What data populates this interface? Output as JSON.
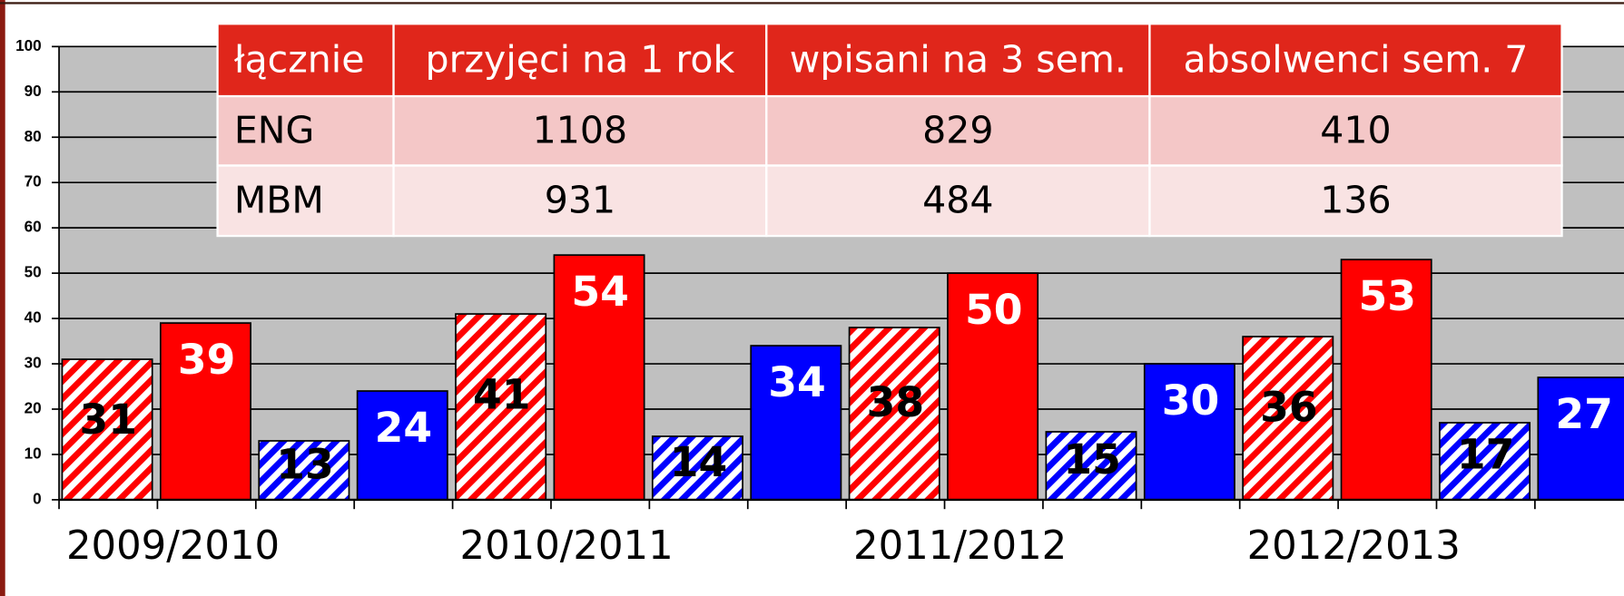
{
  "chart_data": {
    "type": "bar",
    "categories": [
      "2009/2010",
      "2010/2011",
      "2011/2012",
      "2012/2013"
    ],
    "series": [
      {
        "color": "#ff0000",
        "hatched": true,
        "label_color": "#000000",
        "values": [
          31,
          41,
          38,
          36
        ]
      },
      {
        "color": "#ff0000",
        "hatched": false,
        "label_color": "#ffffff",
        "values": [
          39,
          54,
          50,
          53
        ]
      },
      {
        "color": "#0000ff",
        "hatched": true,
        "label_color": "#000000",
        "values": [
          13,
          14,
          15,
          17
        ]
      },
      {
        "color": "#0000ff",
        "hatched": false,
        "label_color": "#ffffff",
        "values": [
          24,
          34,
          30,
          27
        ]
      }
    ],
    "ylim": [
      0,
      100
    ],
    "yticks": [
      0,
      10,
      20,
      30,
      40,
      50,
      60,
      70,
      80,
      90,
      100
    ],
    "grid": true
  },
  "table": {
    "columns": [
      "łącznie",
      "przyjęci na 1 rok",
      "wpisani na 3 sem.",
      "absolwenci sem. 7"
    ],
    "rows": [
      [
        "ENG",
        "1108",
        "829",
        "410"
      ],
      [
        "MBM",
        "931",
        "484",
        "136"
      ]
    ]
  }
}
